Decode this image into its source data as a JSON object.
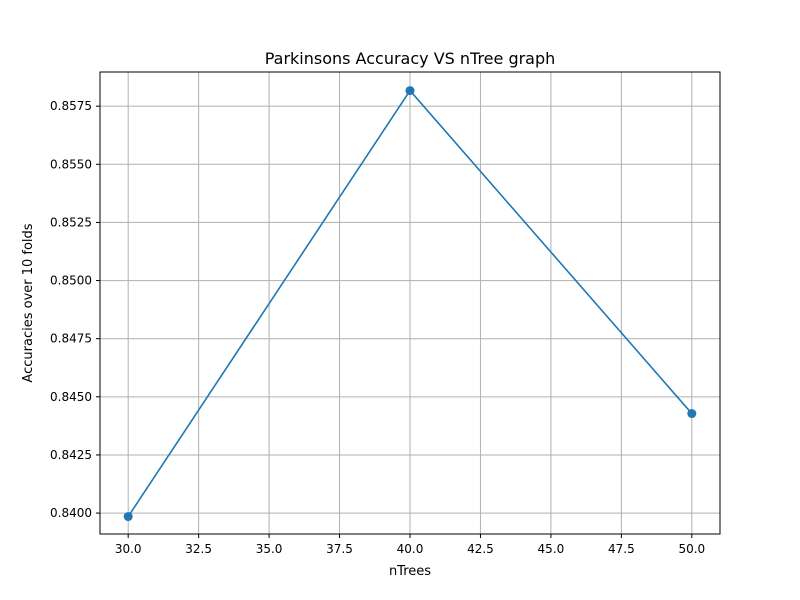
{
  "chart_data": {
    "type": "line",
    "title": "Parkinsons Accuracy VS nTree graph",
    "xlabel": "nTrees",
    "ylabel": "Accuracies over 10 folds",
    "x": [
      30,
      40,
      50
    ],
    "series": [
      {
        "values": [
          0.83985,
          0.85817,
          0.84428
        ],
        "color": "#1f77b4"
      }
    ],
    "xlim": [
      29.0,
      51.0
    ],
    "ylim": [
      0.8391,
      0.85897
    ],
    "xticks": [
      30.0,
      32.5,
      35.0,
      37.5,
      40.0,
      42.5,
      45.0,
      47.5,
      50.0
    ],
    "xtick_labels": [
      "30.0",
      "32.5",
      "35.0",
      "37.5",
      "40.0",
      "42.5",
      "45.0",
      "47.5",
      "50.0"
    ],
    "yticks": [
      0.84,
      0.8425,
      0.845,
      0.8475,
      0.85,
      0.8525,
      0.855,
      0.8575
    ],
    "ytick_labels": [
      "0.8400",
      "0.8425",
      "0.8450",
      "0.8475",
      "0.8500",
      "0.8525",
      "0.8550",
      "0.8575"
    ],
    "grid": true,
    "markers": true,
    "grid_color": "#b0b0b0"
  }
}
